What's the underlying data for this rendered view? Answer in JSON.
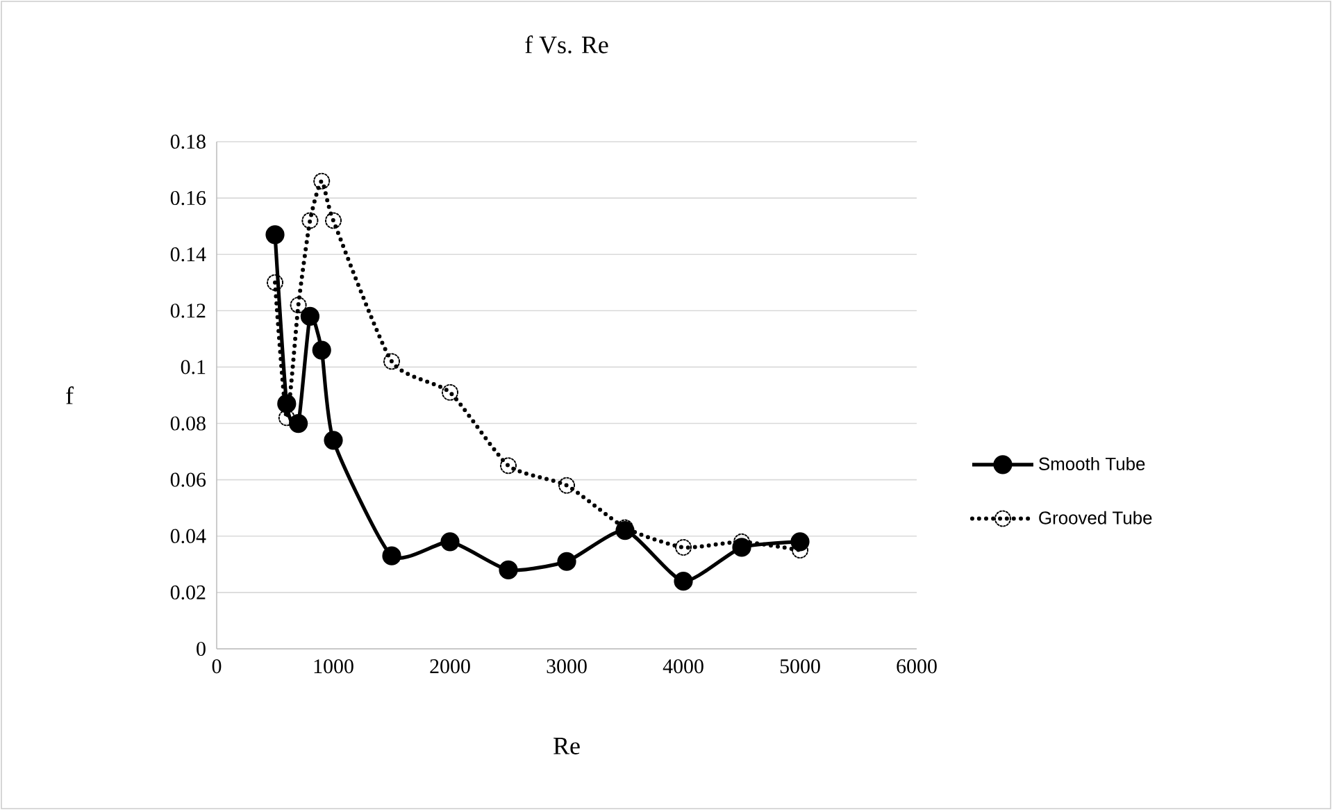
{
  "chart_data": {
    "type": "line",
    "title": "f Vs. Re",
    "xlabel": "Re",
    "ylabel": "f",
    "xlim": [
      0,
      6000
    ],
    "xticks": [
      0,
      1000,
      2000,
      3000,
      4000,
      5000,
      6000
    ],
    "ylim": [
      0,
      0.18
    ],
    "yticks": [
      0,
      0.02,
      0.04,
      0.06,
      0.08,
      0.1,
      0.12,
      0.14,
      0.16,
      0.18
    ],
    "grid": "y",
    "legend": "right",
    "marker": "circle",
    "x": [
      500,
      600,
      700,
      800,
      900,
      1000,
      1500,
      2000,
      2500,
      3000,
      3500,
      4000,
      4500,
      5000
    ],
    "series": [
      {
        "name": "Smooth Tube",
        "color": "#000000",
        "line_style": "solid",
        "values": [
          0.147,
          0.087,
          0.08,
          0.118,
          0.106,
          0.074,
          0.033,
          0.038,
          0.028,
          0.031,
          0.042,
          0.024,
          0.036,
          0.038
        ]
      },
      {
        "name": "Grooved Tube",
        "color": "#000000",
        "line_style": "dotted",
        "values": [
          0.13,
          0.082,
          0.122,
          0.152,
          0.166,
          0.152,
          0.102,
          0.091,
          0.065,
          0.058,
          0.043,
          0.036,
          0.038,
          0.035
        ]
      }
    ]
  }
}
